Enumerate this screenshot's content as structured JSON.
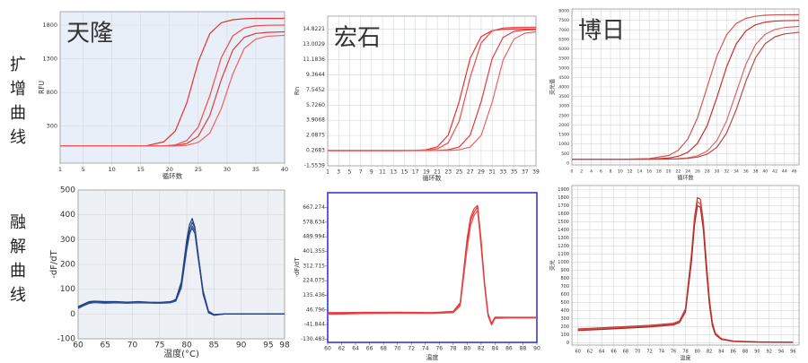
{
  "row_labels": [
    "扩增曲线",
    "融解曲线"
  ],
  "chart_data": [
    {
      "type": "line",
      "title": "天隆",
      "x_label": "循环数",
      "y_label": "RFU",
      "background": "#e9eff8",
      "grid": true,
      "xlim": [
        1,
        40
      ],
      "ylim": [
        -250,
        2000
      ],
      "xticks": [
        1,
        5,
        10,
        15,
        20,
        25,
        30,
        35,
        40
      ],
      "yticks": [
        300,
        800,
        1300,
        1800
      ],
      "x": [
        1,
        4,
        7,
        10,
        13,
        16,
        19,
        21,
        23,
        25,
        27,
        29,
        31,
        33,
        35,
        37,
        40
      ],
      "series": [
        {
          "color": "#e8302e",
          "values": [
            5,
            5,
            5,
            5,
            5,
            9,
            66,
            226,
            644,
            1256,
            1674,
            1834,
            1880,
            1895,
            1900,
            1900,
            1900
          ]
        },
        {
          "color": "#f04b4b",
          "values": [
            5,
            5,
            5,
            5,
            5,
            5,
            6,
            20,
            86,
            286,
            750,
            1316,
            1641,
            1755,
            1790,
            1798,
            1800
          ]
        },
        {
          "color": "#e23a3a",
          "values": [
            5,
            5,
            5,
            5,
            5,
            5,
            5,
            10,
            42,
            150,
            457,
            990,
            1430,
            1619,
            1676,
            1692,
            1700
          ]
        },
        {
          "color": "#f26060",
          "values": [
            5,
            5,
            5,
            5,
            5,
            5,
            5,
            6,
            15,
            57,
            196,
            560,
            1075,
            1454,
            1592,
            1635,
            1648
          ]
        }
      ]
    },
    {
      "type": "line",
      "title": "宏石",
      "x_label": "循环数",
      "y_label": "Rn",
      "grid": true,
      "xlim": [
        1,
        39
      ],
      "ylim": [
        -1.5539,
        16.4
      ],
      "xticks": [
        1,
        3,
        5,
        7,
        9,
        11,
        13,
        15,
        17,
        19,
        21,
        23,
        25,
        27,
        29,
        31,
        33,
        35,
        37,
        39
      ],
      "yticks": [
        -1.5539,
        0.2683,
        2.0875,
        3.9068,
        {
          "value": 5.726,
          "label": "5.7260"
        },
        7.5452,
        9.3644,
        11.1836,
        13.0029,
        14.8221
      ],
      "x": [
        1,
        5,
        9,
        13,
        17,
        19,
        21,
        23,
        25,
        27,
        29,
        31,
        33,
        35,
        37,
        39
      ],
      "series": [
        {
          "color": "#e8302e",
          "values": [
            0.27,
            0.27,
            0.27,
            0.27,
            0.29,
            0.37,
            0.72,
            2.14,
            6.18,
            11.36,
            13.94,
            14.66,
            14.83,
            14.86,
            14.87,
            14.87
          ]
        },
        {
          "color": "#f04b4b",
          "values": [
            0.27,
            0.27,
            0.27,
            0.27,
            0.28,
            0.31,
            0.48,
            1.21,
            3.83,
            9.08,
            13.18,
            14.62,
            14.98,
            15.04,
            15.06,
            15.07
          ]
        },
        {
          "color": "#e23a3a",
          "values": [
            0.27,
            0.27,
            0.27,
            0.27,
            0.27,
            0.28,
            0.29,
            0.37,
            0.71,
            2.13,
            6.14,
            11.29,
            13.85,
            14.57,
            14.73,
            14.77
          ]
        },
        {
          "color": "#f26060",
          "values": [
            0.27,
            0.27,
            0.27,
            0.27,
            0.27,
            0.27,
            0.28,
            0.29,
            0.37,
            0.7,
            2.1,
            6.06,
            11.14,
            13.66,
            14.36,
            14.52
          ]
        }
      ]
    },
    {
      "type": "line",
      "title": "博日",
      "x_label": "循环数",
      "y_label": "荧光值",
      "grid": true,
      "xlim": [
        0,
        47
      ],
      "ylim": [
        -100,
        8100
      ],
      "xticks": [
        0,
        2,
        4,
        6,
        8,
        10,
        12,
        14,
        16,
        18,
        20,
        22,
        24,
        26,
        28,
        30,
        32,
        34,
        36,
        38,
        40,
        42,
        44,
        46
      ],
      "yticks": [
        0,
        500,
        1000,
        1500,
        2000,
        2500,
        3000,
        3500,
        4000,
        4500,
        5000,
        5500,
        6000,
        6500,
        7000,
        7500,
        8000
      ],
      "x": [
        0,
        4,
        8,
        12,
        16,
        20,
        22,
        24,
        26,
        28,
        30,
        32,
        34,
        36,
        38,
        40,
        42,
        44,
        47
      ],
      "series": [
        {
          "color": "#d9534f",
          "values": [
            200,
            200,
            200,
            205,
            233,
            395,
            666,
            1261,
            2384,
            4000,
            5617,
            6740,
            7336,
            7605,
            7720,
            7770,
            7790,
            7797,
            7800
          ]
        },
        {
          "color": "#c9302c",
          "values": [
            200,
            200,
            200,
            200,
            203,
            262,
            350,
            563,
            1035,
            1972,
            3444,
            5047,
            6263,
            6947,
            7267,
            7406,
            7462,
            7485,
            7497
          ]
        },
        {
          "color": "#e06666",
          "values": [
            200,
            200,
            200,
            200,
            200,
            210,
            230,
            274,
            380,
            629,
            1178,
            2211,
            3700,
            5190,
            6224,
            6773,
            7021,
            7127,
            7181
          ]
        },
        {
          "color": "#b94a48",
          "values": [
            200,
            200,
            200,
            200,
            200,
            205,
            215,
            245,
            310,
            468,
            826,
            1567,
            2797,
            4300,
            5534,
            6274,
            6633,
            6790,
            6871
          ]
        }
      ]
    },
    {
      "type": "line",
      "x_label": "温度(°C)",
      "y_label": "-dF/dT",
      "background": "#edf0f5",
      "grid": true,
      "xlim": [
        60,
        98
      ],
      "ylim": [
        -100,
        500
      ],
      "xticks": [
        60,
        65,
        70,
        75,
        80,
        85,
        90,
        95,
        98
      ],
      "yticks": [
        -100,
        0,
        100,
        200,
        300,
        400,
        500
      ],
      "x": [
        60,
        61,
        62,
        63,
        65,
        67,
        69,
        71,
        73,
        75,
        77,
        78,
        79,
        80,
        80.5,
        81,
        81.5,
        82,
        83,
        84,
        85,
        87,
        90,
        95,
        98
      ],
      "series": [
        {
          "color": "#1f3a7a",
          "values": [
            25,
            35,
            45,
            48,
            45,
            47,
            45,
            47,
            45,
            44,
            47,
            60,
            130,
            300,
            360,
            385,
            350,
            250,
            80,
            5,
            -5,
            0,
            0,
            0,
            0
          ]
        },
        {
          "color": "#2c4a8a",
          "values": [
            28,
            38,
            47,
            50,
            47,
            48,
            46,
            48,
            46,
            46,
            48,
            55,
            115,
            280,
            340,
            370,
            345,
            260,
            90,
            10,
            -3,
            0,
            1,
            0,
            0
          ]
        },
        {
          "color": "#3a5a9a",
          "values": [
            22,
            33,
            42,
            46,
            43,
            45,
            43,
            45,
            44,
            43,
            45,
            52,
            105,
            260,
            320,
            355,
            335,
            255,
            95,
            12,
            -2,
            1,
            0,
            0,
            0
          ]
        },
        {
          "color": "#233f86",
          "values": [
            30,
            40,
            50,
            52,
            50,
            50,
            48,
            50,
            48,
            47,
            50,
            58,
            120,
            270,
            330,
            345,
            325,
            240,
            85,
            8,
            -4,
            0,
            0,
            1,
            0
          ]
        }
      ]
    },
    {
      "type": "line",
      "x_label": "温度",
      "y_label": "-dF/dT",
      "frame_color": "#2a2ad0",
      "grid": false,
      "xlim": [
        60,
        90
      ],
      "ylim": [
        -150,
        757
      ],
      "xticks": [
        60,
        62,
        64,
        66,
        68,
        70,
        72,
        74,
        76,
        78,
        80,
        82,
        84,
        86,
        88,
        90
      ],
      "yticks": [
        -130.483,
        -41.844,
        46.796,
        135.436,
        224.075,
        312.715,
        401.355,
        489.994,
        578.634,
        667.274
      ],
      "x": [
        60,
        65,
        70,
        75,
        78,
        79,
        80,
        80.5,
        81,
        81.5,
        82,
        82.5,
        83,
        83.5,
        84,
        86,
        90
      ],
      "series": [
        {
          "color": "#e8302e",
          "values": [
            25,
            28,
            30,
            28,
            35,
            80,
            450,
            590,
            640,
            670,
            450,
            200,
            20,
            -40,
            0,
            0,
            0
          ]
        },
        {
          "color": "#f04b4b",
          "values": [
            20,
            24,
            26,
            25,
            30,
            70,
            420,
            560,
            620,
            650,
            430,
            190,
            10,
            -45,
            -5,
            -2,
            -2
          ]
        },
        {
          "color": "#e23a3a",
          "values": [
            30,
            32,
            33,
            31,
            38,
            90,
            480,
            610,
            660,
            680,
            470,
            210,
            25,
            -35,
            3,
            2,
            2
          ]
        }
      ]
    },
    {
      "type": "line",
      "x_label": "温度",
      "y_label": "荧光",
      "grid": true,
      "xlim": [
        59,
        97
      ],
      "ylim": [
        -30,
        1950
      ],
      "xticks": [
        60,
        62,
        64,
        66,
        68,
        70,
        72,
        74,
        76,
        78,
        80,
        82,
        84,
        86,
        88,
        90,
        92,
        94,
        96
      ],
      "yticks": [
        0,
        100,
        200,
        300,
        400,
        500,
        600,
        700,
        800,
        900,
        1000,
        1100,
        1200,
        1300,
        1400,
        1500,
        1600,
        1700,
        1800,
        1900
      ],
      "x": [
        60,
        64,
        68,
        72,
        76,
        77,
        78,
        79,
        79.5,
        80,
        80.5,
        81,
        81.5,
        82,
        82.5,
        83,
        84,
        86,
        90,
        96
      ],
      "series": [
        {
          "color": "#c0392b",
          "values": [
            170,
            185,
            200,
            215,
            240,
            270,
            420,
            1100,
            1550,
            1800,
            1780,
            1500,
            1000,
            550,
            250,
            120,
            50,
            20,
            10,
            5
          ]
        },
        {
          "color": "#d9534f",
          "values": [
            160,
            175,
            190,
            205,
            230,
            260,
            400,
            1050,
            1500,
            1750,
            1720,
            1450,
            950,
            520,
            230,
            110,
            45,
            18,
            8,
            4
          ]
        },
        {
          "color": "#b22222",
          "values": [
            150,
            165,
            180,
            195,
            220,
            250,
            380,
            1000,
            1450,
            1700,
            1680,
            1400,
            900,
            480,
            210,
            100,
            40,
            15,
            7,
            3
          ]
        }
      ]
    }
  ]
}
